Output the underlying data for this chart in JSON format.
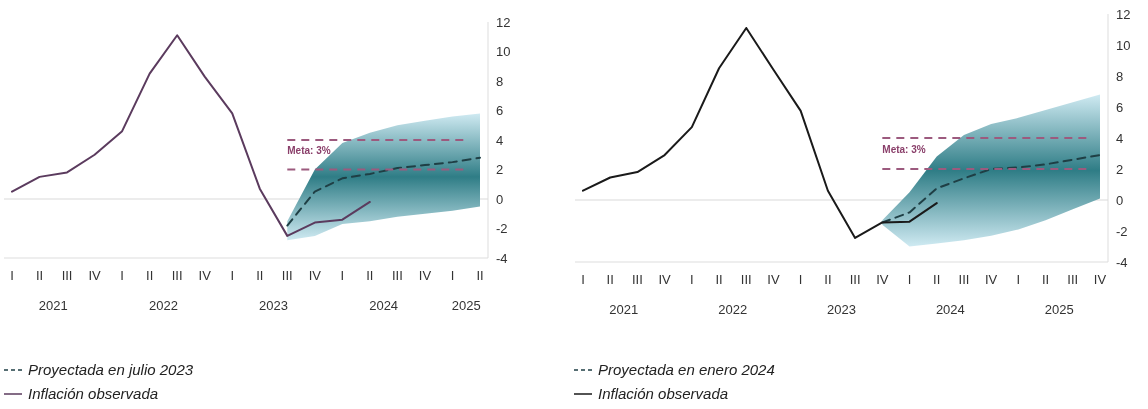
{
  "chart_data": [
    {
      "type": "line",
      "categories": [
        "I",
        "II",
        "III",
        "IV",
        "I",
        "II",
        "III",
        "IV",
        "I",
        "II",
        "III",
        "IV",
        "I",
        "II",
        "III",
        "IV",
        "I",
        "II"
      ],
      "series": [
        {
          "name": "Proyectada en julio 2023",
          "color": "#1f3f45",
          "line_style": "dashed",
          "values": [
            null,
            null,
            null,
            null,
            null,
            null,
            null,
            null,
            null,
            null,
            -1.8,
            0.5,
            1.4,
            1.7,
            2.1,
            2.3,
            2.5,
            2.8
          ],
          "lower": [
            null,
            null,
            null,
            null,
            null,
            null,
            null,
            null,
            null,
            null,
            -2.8,
            -2.5,
            -1.7,
            -1.5,
            -1.2,
            -1.0,
            -0.8,
            -0.5
          ],
          "upper": [
            null,
            null,
            null,
            null,
            null,
            null,
            null,
            null,
            null,
            null,
            -1.5,
            2.0,
            3.8,
            4.5,
            5.0,
            5.3,
            5.6,
            5.8
          ]
        },
        {
          "name": "Inflación observada",
          "color": "#5b3b5e",
          "line_style": "solid",
          "values": [
            0.5,
            1.5,
            1.8,
            3.0,
            4.6,
            8.5,
            11.1,
            8.3,
            5.8,
            0.7,
            -2.5,
            -1.6,
            -1.4,
            -0.2,
            null,
            null,
            null,
            null
          ]
        }
      ],
      "ylim": [
        -4,
        12
      ],
      "yticks": [
        -4,
        -2,
        0,
        2,
        4,
        6,
        8,
        10,
        12
      ],
      "grid": false,
      "legend": "bottom",
      "marker": "none",
      "ref_lines": [
        {
          "axis": "y",
          "value": 0,
          "color": "#d9d9d9",
          "line_style": "solid"
        },
        {
          "axis": "y",
          "value": 4,
          "color": "#9c5a7e",
          "line_style": "dashed"
        },
        {
          "axis": "y",
          "value": 2,
          "color": "#9c5a7e",
          "line_style": "dashed"
        }
      ],
      "annotations": [
        "2021",
        "2022",
        "2023",
        "2024",
        "2025",
        "Meta: 3%"
      ]
    },
    {
      "type": "line",
      "categories": [
        "I",
        "II",
        "III",
        "IV",
        "I",
        "II",
        "III",
        "IV",
        "I",
        "II",
        "III",
        "IV",
        "I",
        "II",
        "III",
        "IV",
        "I",
        "II",
        "III",
        "IV"
      ],
      "series": [
        {
          "name": "Proyectada en enero 2024",
          "color": "#1f3f45",
          "line_style": "dashed",
          "values": [
            null,
            null,
            null,
            null,
            null,
            null,
            null,
            null,
            null,
            null,
            null,
            -1.45,
            -0.8,
            0.75,
            1.4,
            2.0,
            2.1,
            2.3,
            2.6,
            2.9
          ],
          "lower": [
            null,
            null,
            null,
            null,
            null,
            null,
            null,
            null,
            null,
            null,
            null,
            -1.6,
            -3.0,
            -2.8,
            -2.6,
            -2.3,
            -1.9,
            -1.3,
            -0.6,
            0.1
          ],
          "upper": [
            null,
            null,
            null,
            null,
            null,
            null,
            null,
            null,
            null,
            null,
            null,
            -1.3,
            0.5,
            2.8,
            4.2,
            4.9,
            5.3,
            5.8,
            6.3,
            6.8
          ]
        },
        {
          "name": "Inflación observada",
          "color": "#1a1a1a",
          "line_style": "solid",
          "values": [
            0.6,
            1.45,
            1.8,
            2.9,
            4.7,
            8.5,
            11.1,
            8.4,
            5.75,
            0.6,
            -2.45,
            -1.45,
            -1.4,
            -0.2,
            null,
            null,
            null,
            null,
            null,
            null
          ]
        }
      ],
      "ylim": [
        -4,
        12
      ],
      "yticks": [
        -4,
        -2,
        0,
        2,
        4,
        6,
        8,
        10,
        12
      ],
      "grid": false,
      "legend": "bottom",
      "marker": "none",
      "ref_lines": [
        {
          "axis": "y",
          "value": 0,
          "color": "#d9d9d9",
          "line_style": "solid"
        },
        {
          "axis": "y",
          "value": 4,
          "color": "#9c5a7e",
          "line_style": "dashed"
        },
        {
          "axis": "y",
          "value": 2,
          "color": "#9c5a7e",
          "line_style": "dashed"
        }
      ],
      "annotations": [
        "2021",
        "2022",
        "2023",
        "2024",
        "2025",
        "Meta: 3%"
      ]
    }
  ]
}
